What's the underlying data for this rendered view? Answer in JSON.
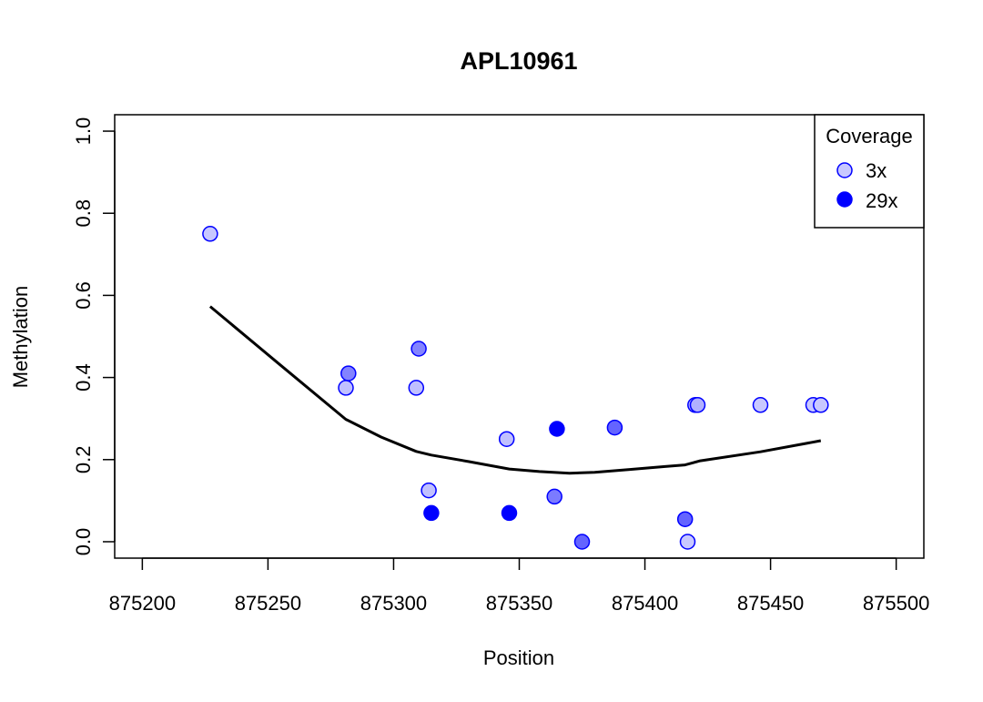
{
  "chart_data": {
    "type": "scatter",
    "title": "APL10961",
    "xlabel": "Position",
    "ylabel": "Methylation",
    "xlim": [
      875189,
      875511
    ],
    "ylim": [
      -0.04,
      1.04
    ],
    "xticks": [
      875200,
      875250,
      875300,
      875350,
      875400,
      875450,
      875500
    ],
    "yticks": [
      0.0,
      0.2,
      0.4,
      0.6,
      0.8,
      1.0
    ],
    "ytick_labels": [
      "0.0",
      "0.2",
      "0.4",
      "0.6",
      "0.8",
      "1.0"
    ],
    "legend": {
      "title": "Coverage",
      "position": "top-right",
      "entries": [
        {
          "label": "3x",
          "color": "#c8c8ff"
        },
        {
          "label": "29x",
          "color": "#0000ff"
        }
      ]
    },
    "point_edge_color": "#0000ff",
    "points": [
      {
        "x": 875227,
        "y": 0.75,
        "coverage": 3
      },
      {
        "x": 875281,
        "y": 0.375,
        "coverage": 4
      },
      {
        "x": 875282,
        "y": 0.41,
        "coverage": 12
      },
      {
        "x": 875309,
        "y": 0.375,
        "coverage": 4
      },
      {
        "x": 875310,
        "y": 0.47,
        "coverage": 12
      },
      {
        "x": 875314,
        "y": 0.125,
        "coverage": 4
      },
      {
        "x": 875315,
        "y": 0.07,
        "coverage": 29
      },
      {
        "x": 875345,
        "y": 0.25,
        "coverage": 4
      },
      {
        "x": 875346,
        "y": 0.07,
        "coverage": 29
      },
      {
        "x": 875364,
        "y": 0.11,
        "coverage": 13
      },
      {
        "x": 875365,
        "y": 0.275,
        "coverage": 29
      },
      {
        "x": 875375,
        "y": 0.0,
        "coverage": 16
      },
      {
        "x": 875388,
        "y": 0.278,
        "coverage": 16
      },
      {
        "x": 875416,
        "y": 0.055,
        "coverage": 16
      },
      {
        "x": 875417,
        "y": 0.0,
        "coverage": 3
      },
      {
        "x": 875420,
        "y": 0.333,
        "coverage": 6
      },
      {
        "x": 875421,
        "y": 0.333,
        "coverage": 6
      },
      {
        "x": 875446,
        "y": 0.333,
        "coverage": 3
      },
      {
        "x": 875467,
        "y": 0.333,
        "coverage": 3
      },
      {
        "x": 875470,
        "y": 0.333,
        "coverage": 3
      }
    ],
    "smooth_line": {
      "color": "#000000",
      "x": [
        875227,
        875254,
        875281,
        875295,
        875309,
        875315,
        875330,
        875346,
        875358,
        875370,
        875380,
        875394,
        875408,
        875416,
        875422,
        875446,
        875470
      ],
      "y": [
        0.573,
        0.435,
        0.298,
        0.255,
        0.22,
        0.211,
        0.195,
        0.177,
        0.171,
        0.167,
        0.169,
        0.176,
        0.183,
        0.187,
        0.197,
        0.219,
        0.246
      ]
    }
  }
}
